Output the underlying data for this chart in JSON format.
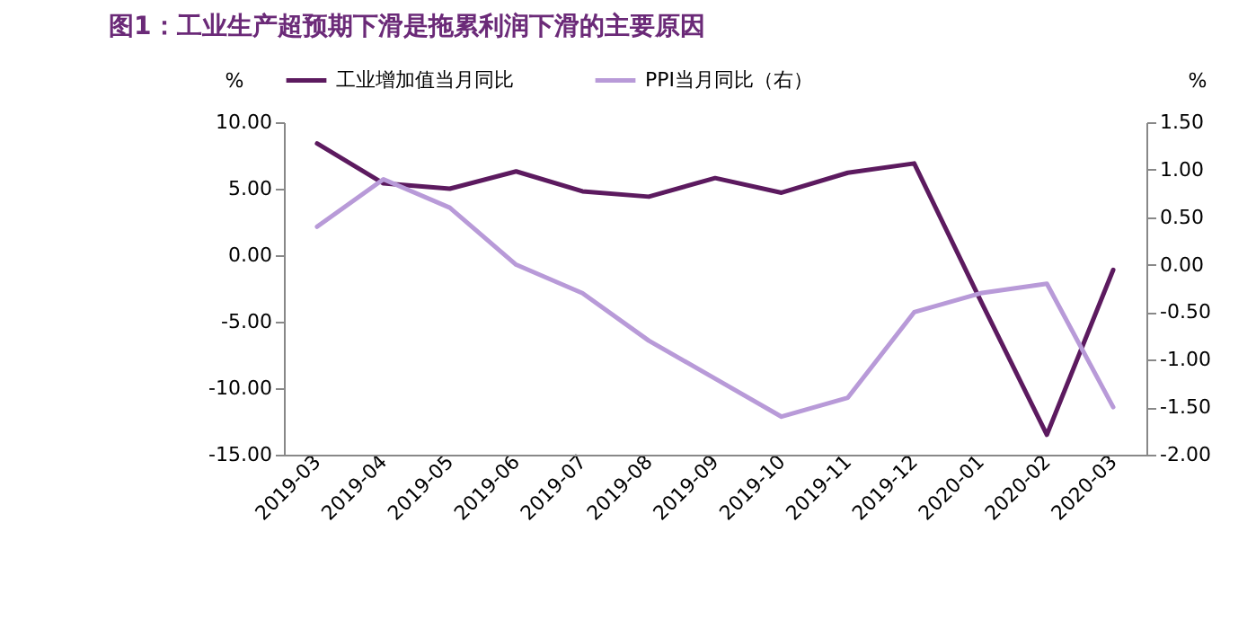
{
  "chart_data": {
    "type": "line",
    "title": "图1：工业生产超预期下滑是拖累利润下滑的主要原因",
    "categories": [
      "2019-03",
      "2019-04",
      "2019-05",
      "2019-06",
      "2019-07",
      "2019-08",
      "2019-09",
      "2019-10",
      "2019-11",
      "2019-12",
      "2020-01",
      "2020-02",
      "2020-03"
    ],
    "series": [
      {
        "name": "工业增加值当月同比",
        "color": "#5c1a5f",
        "values": [
          8.4,
          5.4,
          5.0,
          6.3,
          4.8,
          4.4,
          5.8,
          4.7,
          6.2,
          6.9,
          -3.4,
          -13.5,
          -1.1
        ]
      },
      {
        "name": "PPI当月同比（右）",
        "color": "#b89ad8",
        "axis": "y2",
        "values": [
          0.4,
          0.9,
          0.6,
          0.0,
          -0.3,
          -0.8,
          -1.2,
          -1.6,
          -1.4,
          -0.5,
          -0.3,
          -0.2,
          -1.5
        ]
      }
    ],
    "ylabel": "%",
    "y2label": "%",
    "ylim": [
      -15,
      10
    ],
    "yticks": [
      {
        "value": -15,
        "label": "-15.00"
      },
      {
        "value": -10,
        "label": "-10.00"
      },
      {
        "value": -5,
        "label": "-5.00"
      },
      {
        "value": 0,
        "label": "0.00"
      },
      {
        "value": 5,
        "label": "5.00"
      },
      {
        "value": 10,
        "label": "10.00"
      }
    ],
    "y2lim": [
      -2,
      1.5
    ],
    "y2ticks": [
      {
        "value": -2,
        "label": "-2.00"
      },
      {
        "value": -1.5,
        "label": "-1.50"
      },
      {
        "value": -1,
        "label": "-1.00"
      },
      {
        "value": -0.5,
        "label": "-0.50"
      },
      {
        "value": 0,
        "label": "0.00"
      },
      {
        "value": 0.5,
        "label": "0.50"
      },
      {
        "value": 1,
        "label": "1.00"
      },
      {
        "value": 1.5,
        "label": "1.50"
      }
    ],
    "legend": "top",
    "grid": false,
    "marker": "none",
    "line_style": "solid"
  }
}
